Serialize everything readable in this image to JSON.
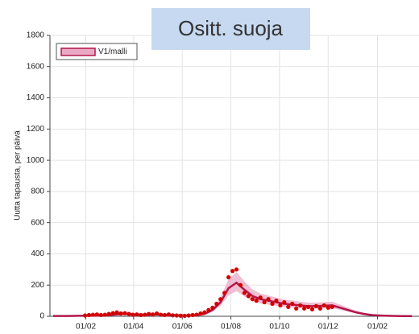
{
  "chart_data": {
    "type": "line",
    "title": "Ositt. suoja",
    "ylabel": "Uutta tapausta, per päivä",
    "xlim": [
      -14,
      449
    ],
    "xticks": [
      {
        "value": 31,
        "label": "01/02"
      },
      {
        "value": 91,
        "label": "01/04"
      },
      {
        "value": 152,
        "label": "01/06"
      },
      {
        "value": 213,
        "label": "01/08"
      },
      {
        "value": 274,
        "label": "01/10"
      },
      {
        "value": 335,
        "label": "01/12"
      },
      {
        "value": 397,
        "label": "01/02"
      }
    ],
    "ylim": [
      0,
      1800
    ],
    "yticks": [
      0,
      200,
      400,
      600,
      800,
      1000,
      1200,
      1400,
      1600,
      1800
    ],
    "grid": true,
    "legend": "upper left",
    "series": [
      {
        "name": "V1/malli",
        "color": "#b3164b",
        "band_color": "#e9a9c4",
        "x": [
          -10,
          0,
          10,
          20,
          30,
          40,
          50,
          60,
          70,
          80,
          90,
          100,
          110,
          120,
          130,
          140,
          150,
          160,
          170,
          180,
          190,
          200,
          210,
          220,
          230,
          240,
          250,
          260,
          270,
          280,
          290,
          300,
          310,
          320,
          330,
          340,
          350,
          360,
          370,
          380,
          390,
          400,
          410,
          420,
          430,
          440
        ],
        "values": [
          2,
          2,
          2,
          3,
          3,
          4,
          5,
          8,
          12,
          15,
          12,
          10,
          10,
          12,
          10,
          8,
          6,
          5,
          8,
          15,
          40,
          90,
          180,
          215,
          170,
          130,
          110,
          100,
          90,
          80,
          75,
          70,
          65,
          65,
          68,
          70,
          55,
          40,
          25,
          15,
          8,
          5,
          3,
          2,
          1,
          1
        ],
        "upper": [
          6,
          6,
          6,
          7,
          7,
          8,
          10,
          13,
          19,
          23,
          19,
          16,
          16,
          19,
          16,
          13,
          11,
          10,
          13,
          23,
          55,
          120,
          237,
          283,
          224,
          172,
          146,
          133,
          120,
          107,
          101,
          94,
          88,
          88,
          91,
          94,
          75,
          55,
          36,
          23,
          13,
          10,
          7,
          6,
          4,
          4
        ],
        "lower": [
          1,
          1,
          1,
          2,
          2,
          3,
          4,
          6,
          9,
          11,
          9,
          7,
          7,
          9,
          7,
          6,
          4,
          4,
          6,
          11,
          30,
          68,
          135,
          161,
          128,
          98,
          82,
          75,
          68,
          60,
          56,
          53,
          49,
          49,
          51,
          53,
          41,
          30,
          19,
          11,
          6,
          4,
          2,
          1,
          1,
          1
        ]
      }
    ],
    "points": {
      "color": "#d40000",
      "x": [
        30,
        35,
        40,
        45,
        50,
        55,
        60,
        65,
        70,
        75,
        80,
        85,
        90,
        95,
        100,
        105,
        110,
        115,
        120,
        125,
        130,
        135,
        140,
        145,
        150,
        155,
        160,
        165,
        170,
        175,
        180,
        185,
        190,
        195,
        200,
        205,
        210,
        215,
        220,
        225,
        230,
        235,
        240,
        245,
        250,
        255,
        260,
        265,
        270,
        275,
        280,
        285,
        290,
        295,
        300,
        305,
        310,
        315,
        320,
        325,
        330,
        335,
        340
      ],
      "values": [
        5,
        8,
        10,
        12,
        8,
        10,
        15,
        20,
        25,
        18,
        20,
        15,
        10,
        12,
        8,
        10,
        15,
        12,
        18,
        10,
        8,
        12,
        6,
        5,
        4,
        3,
        5,
        8,
        10,
        18,
        25,
        40,
        55,
        80,
        110,
        150,
        250,
        290,
        300,
        200,
        150,
        130,
        110,
        100,
        120,
        90,
        110,
        80,
        100,
        70,
        90,
        60,
        80,
        50,
        70,
        50,
        60,
        45,
        65,
        50,
        70,
        55,
        60
      ]
    }
  }
}
